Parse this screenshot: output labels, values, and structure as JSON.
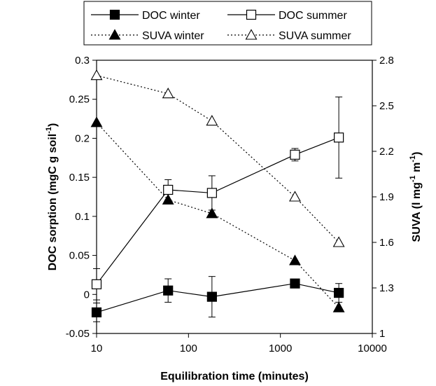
{
  "chart_data": {
    "type": "line",
    "x_scale": "log",
    "x": [
      10,
      60,
      180,
      1440,
      4320
    ],
    "xlim": [
      10,
      10000
    ],
    "x_ticks": [
      "10",
      "100",
      "1000",
      "10000"
    ],
    "xlabel": "Equilibration time (minutes)",
    "ylabel_left": "DOC sorption (mgC g soil",
    "ylabel_left_sup": "-1",
    "ylabel_left_end": ")",
    "ylim_left": [
      -0.05,
      0.3
    ],
    "y_ticks_left": [
      "-0.05",
      "0",
      "0.05",
      "0.1",
      "0.15",
      "0.2",
      "0.25",
      "0.3"
    ],
    "ylabel_right": "SUVA (l mg",
    "ylabel_right_sup1": "-1",
    "ylabel_right_mid": " m",
    "ylabel_right_sup2": "-1",
    "ylabel_right_end": ")",
    "ylim_right": [
      1.0,
      2.8
    ],
    "y_ticks_right": [
      "1",
      "1.3",
      "1.6",
      "1.9",
      "2.2",
      "2.5",
      "2.8"
    ],
    "grid": false,
    "legend_position": "top",
    "series": [
      {
        "name": "DOC winter",
        "axis": "left",
        "line": "solid",
        "marker": "filled-square",
        "values": [
          -0.023,
          0.005,
          -0.003,
          0.014,
          0.002
        ],
        "errors": [
          0.012,
          0.015,
          0.026,
          0.0,
          0.012
        ]
      },
      {
        "name": "DOC summer",
        "axis": "left",
        "line": "solid",
        "marker": "open-square",
        "values": [
          0.013,
          0.134,
          0.13,
          0.179,
          0.201
        ],
        "errors": [
          0.02,
          0.013,
          0.022,
          0.008,
          0.052
        ]
      },
      {
        "name": "SUVA winter",
        "axis": "right",
        "line": "dotted",
        "marker": "filled-triangle",
        "values": [
          2.39,
          1.88,
          1.79,
          1.48,
          1.17
        ]
      },
      {
        "name": "SUVA summer",
        "axis": "right",
        "line": "dotted",
        "marker": "open-triangle",
        "values": [
          2.7,
          2.58,
          2.4,
          1.9,
          1.6
        ]
      }
    ]
  }
}
